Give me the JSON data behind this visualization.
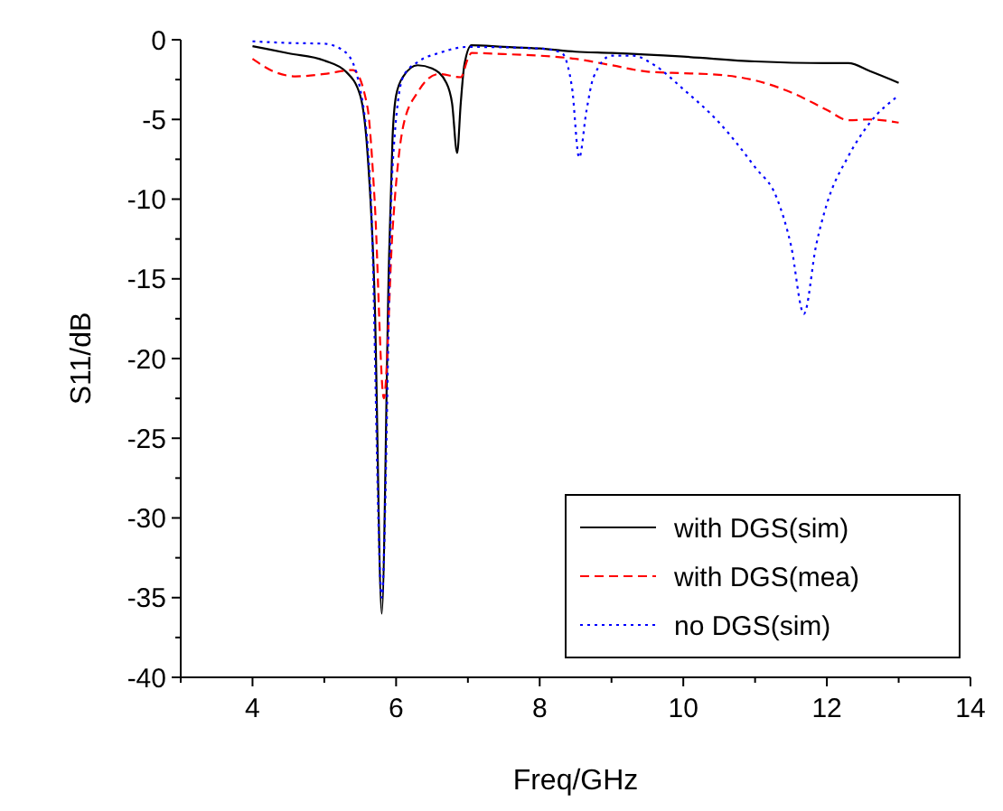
{
  "chart_data": {
    "type": "line",
    "xlabel": "Freq/GHz",
    "ylabel": "S11/dB",
    "xlim": [
      3,
      14
    ],
    "xticks": [
      4,
      6,
      8,
      10,
      12,
      14
    ],
    "ylim": [
      -40,
      0
    ],
    "yticks": [
      -40,
      -35,
      -30,
      -25,
      -20,
      -15,
      -10,
      -5,
      0
    ],
    "grid": false,
    "legend": "bottom right",
    "marker": "none",
    "series": [
      {
        "name": "with DGS(sim)",
        "color": "#000000",
        "line_style": "solid",
        "x": [
          4,
          4.5,
          5,
          5.3,
          5.5,
          5.6,
          5.7,
          5.8,
          5.9,
          5.95,
          6,
          6.1,
          6.3,
          6.5,
          6.7,
          6.78,
          6.85,
          6.9,
          6.95,
          7.05,
          7.5,
          8,
          8.5,
          9,
          10,
          11,
          12,
          12.3,
          12.6,
          13
        ],
        "values": [
          -0.4,
          -0.85,
          -1.3,
          -2,
          -3.5,
          -7,
          -16,
          -36,
          -14,
          -6.2,
          -3.5,
          -2.3,
          -1.6,
          -1.8,
          -2.7,
          -4,
          -7.1,
          -4,
          -1.6,
          -0.35,
          -0.45,
          -0.55,
          -0.75,
          -0.83,
          -1.06,
          -1.36,
          -1.47,
          -1.47,
          -1.97,
          -2.7
        ]
      },
      {
        "name": "with DGS(mea)",
        "color": "#ff0000",
        "line_style": "dashed",
        "x": [
          4,
          4.3,
          4.6,
          5,
          5.4,
          5.6,
          5.7,
          5.83,
          5.95,
          6.1,
          6.3,
          6.6,
          6.9,
          7,
          7.05,
          7.5,
          8,
          8.5,
          9,
          9.5,
          10,
          10.5,
          11,
          11.5,
          12,
          12.3,
          12.6,
          13
        ],
        "values": [
          -1.2,
          -2,
          -2.3,
          -2.15,
          -1.9,
          -4.2,
          -10,
          -22.5,
          -12,
          -5.4,
          -3.3,
          -2.15,
          -2.35,
          -1.2,
          -0.83,
          -0.9,
          -1,
          -1.2,
          -1.6,
          -2,
          -2.1,
          -2.2,
          -2.55,
          -3.3,
          -4.4,
          -5.05,
          -5,
          -5.2
        ]
      },
      {
        "name": "no DGS(sim)",
        "color": "#0000ff",
        "line_style": "dotted",
        "x": [
          4,
          4.5,
          5,
          5.3,
          5.5,
          5.65,
          5.8,
          5.95,
          6.1,
          6.3,
          6.6,
          7,
          8,
          8.3,
          8.45,
          8.55,
          8.65,
          8.75,
          9,
          9.3,
          9.6,
          10,
          10.5,
          11,
          11.3,
          11.5,
          11.68,
          11.85,
          12,
          12.3,
          12.6,
          13
        ],
        "values": [
          -0.1,
          -0.2,
          -0.25,
          -0.8,
          -3.1,
          -10,
          -35,
          -8,
          -2.3,
          -1.4,
          -0.83,
          -0.45,
          -0.55,
          -0.8,
          -3,
          -7.4,
          -4.5,
          -2.35,
          -1,
          -1,
          -1.6,
          -3.1,
          -5.2,
          -8,
          -9.9,
          -12.9,
          -17.2,
          -12.9,
          -10.3,
          -7.3,
          -5.2,
          -3.5
        ]
      }
    ]
  }
}
